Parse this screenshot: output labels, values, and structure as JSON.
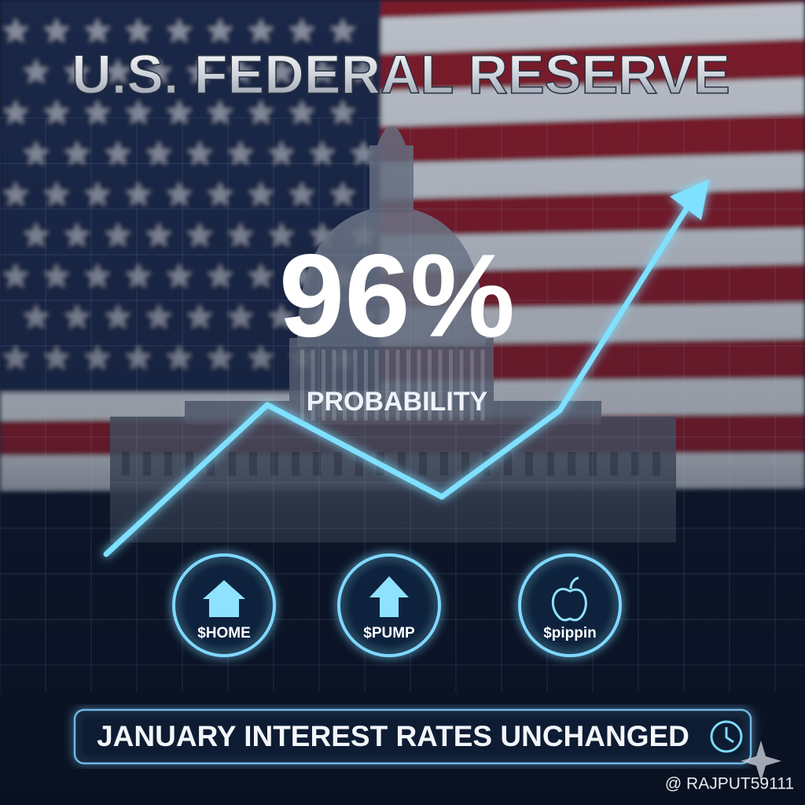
{
  "header": {
    "title": "U.S. FEDERAL RESERVE"
  },
  "headline": {
    "figure": "96%",
    "caption": "PROBABILITY"
  },
  "tokens": [
    "$HOME",
    "$PUMP",
    "$pippin"
  ],
  "banner": {
    "text": "JANUARY INTEREST RATES UNCHANGED"
  },
  "watermark": "@ RAJPUT59111"
}
